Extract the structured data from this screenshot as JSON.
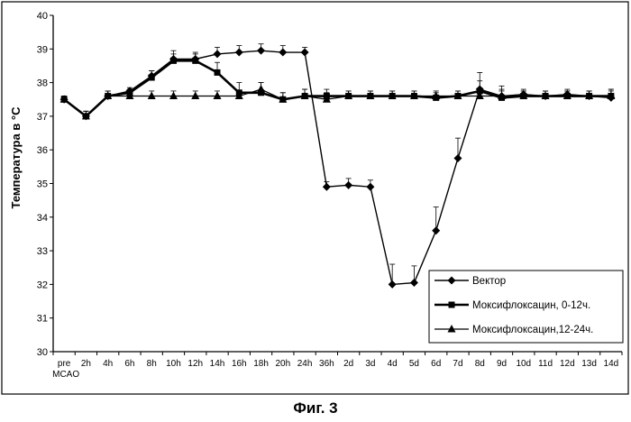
{
  "figure_caption": "Фиг. 3",
  "chart_data": {
    "type": "line",
    "title": "",
    "xlabel": "",
    "ylabel": "Температура в °C",
    "ylim": [
      30,
      40
    ],
    "yticks": [
      "30",
      "31",
      "32",
      "33",
      "34",
      "35",
      "36",
      "37",
      "38",
      "39",
      "40"
    ],
    "categories": [
      "pre MCAO",
      "2h",
      "4h",
      "6h",
      "8h",
      "10h",
      "12h",
      "14h",
      "16h",
      "18h",
      "20h",
      "24h",
      "36h",
      "2d",
      "3d",
      "4d",
      "5d",
      "6d",
      "7d",
      "8d",
      "9d",
      "10d",
      "11d",
      "12d",
      "13d",
      "14d"
    ],
    "grid": false,
    "legend_position": "bottom-right",
    "series": [
      {
        "name": "Вектор",
        "marker": "diamond",
        "values": [
          37.5,
          37.0,
          37.6,
          37.75,
          38.2,
          38.7,
          38.7,
          38.85,
          38.9,
          38.95,
          38.9,
          38.9,
          34.9,
          34.95,
          34.9,
          32.0,
          32.05,
          33.6,
          35.75,
          37.8,
          37.6,
          37.65,
          37.6,
          37.65,
          37.6,
          37.55
        ],
        "errors": [
          0.1,
          0.15,
          0.15,
          0.1,
          0.15,
          0.25,
          0.2,
          0.2,
          0.2,
          0.2,
          0.2,
          0.15,
          0.15,
          0.2,
          0.2,
          0.6,
          0.5,
          0.7,
          0.6,
          0.5,
          0.3,
          0.15,
          0.15,
          0.15,
          0.15,
          0.25
        ]
      },
      {
        "name": "Моксифлоксацин, 0-12ч.",
        "marker": "square",
        "values": [
          37.5,
          37.0,
          37.6,
          37.7,
          38.15,
          38.65,
          38.65,
          38.3,
          37.7,
          37.7,
          37.5,
          37.6,
          37.6,
          37.6,
          37.6,
          37.6,
          37.6,
          37.55,
          37.6,
          37.75,
          37.55,
          37.6,
          37.6,
          37.6,
          37.6,
          37.6
        ],
        "errors": [
          0.1,
          0.15,
          0.15,
          0.1,
          0.2,
          0.2,
          0.2,
          0.3,
          0.3,
          0.3,
          0.2,
          0.2,
          0.2,
          0.15,
          0.15,
          0.15,
          0.15,
          0.15,
          0.15,
          0.3,
          0.25,
          0.15,
          0.15,
          0.15,
          0.15,
          0.2
        ]
      },
      {
        "name": "Моксифлоксацин,12-24ч.",
        "marker": "triangle",
        "values": [
          37.5,
          37.0,
          37.6,
          37.6,
          37.6,
          37.6,
          37.6,
          37.6,
          37.6,
          37.8,
          37.5,
          37.6,
          37.5,
          37.6,
          37.6,
          37.6,
          37.6,
          37.6,
          37.6,
          37.6,
          37.6,
          37.6,
          37.6,
          37.6,
          37.6,
          37.6
        ],
        "errors": [
          0.1,
          0.15,
          0.15,
          0.1,
          0.15,
          0.15,
          0.15,
          0.15,
          0.15,
          0.2,
          0.2,
          0.2,
          0.2,
          0.15,
          0.15,
          0.15,
          0.15,
          0.15,
          0.15,
          0.15,
          0.15,
          0.15,
          0.15,
          0.15,
          0.15,
          0.15
        ]
      }
    ]
  }
}
